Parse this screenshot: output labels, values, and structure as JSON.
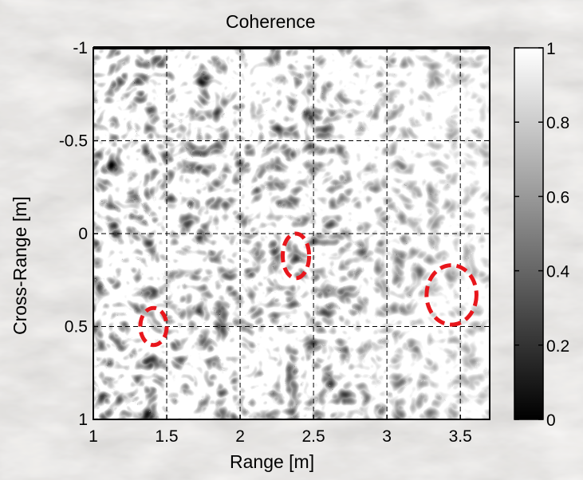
{
  "chart_data": {
    "type": "heatmap",
    "title": "Coherence",
    "xlabel": "Range [m]",
    "ylabel": "Cross-Range [m]",
    "xlim": [
      1.0,
      3.7
    ],
    "ylim": [
      -1.0,
      1.0
    ],
    "y_axis_reversed": true,
    "x_ticks": [
      "1",
      "1.5",
      "2",
      "2.5",
      "3",
      "3.5"
    ],
    "y_ticks": [
      "-1",
      "-0.5",
      "0",
      "0.5",
      "1"
    ],
    "grid": true,
    "colormap": "gray",
    "colorbar": {
      "range": [
        0,
        1
      ],
      "ticks": [
        "0",
        "0.2",
        "0.4",
        "0.6",
        "0.8",
        "1"
      ]
    },
    "annotations": [
      {
        "shape": "ellipse",
        "color": "#e8161c",
        "x": 1.41,
        "y": 0.5,
        "rx": 0.09,
        "ry": 0.1
      },
      {
        "shape": "ellipse",
        "color": "#e8161c",
        "x": 2.38,
        "y": 0.12,
        "rx": 0.09,
        "ry": 0.12
      },
      {
        "shape": "ellipse",
        "color": "#e8161c",
        "x": 3.44,
        "y": 0.33,
        "rx": 0.17,
        "ry": 0.16
      }
    ]
  }
}
